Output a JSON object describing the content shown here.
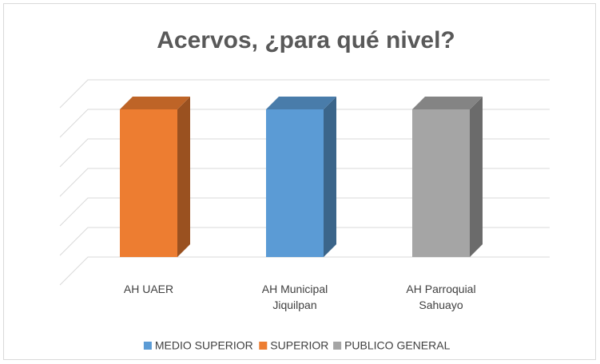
{
  "chart_data": {
    "type": "bar3d",
    "title": "Acervos, ¿para qué nivel?",
    "categories": [
      "AH UAER",
      "AH Municipal\nJiquilpan",
      "AH Parroquial\nSahuayo"
    ],
    "series": [
      {
        "name": "MEDIO SUPERIOR",
        "color": "#5b9bd5",
        "values": [
          null,
          1,
          null
        ]
      },
      {
        "name": "SUPERIOR",
        "color": "#ed7d31",
        "values": [
          1,
          null,
          null
        ]
      },
      {
        "name": "PUBLICO GENERAL",
        "color": "#a5a5a5",
        "values": [
          null,
          null,
          1
        ]
      }
    ],
    "ylim": [
      0,
      1.2
    ],
    "yticks": [
      0,
      0.2,
      0.4,
      0.6,
      0.8,
      1,
      1.2
    ],
    "grid": true,
    "legend": "bottom"
  }
}
